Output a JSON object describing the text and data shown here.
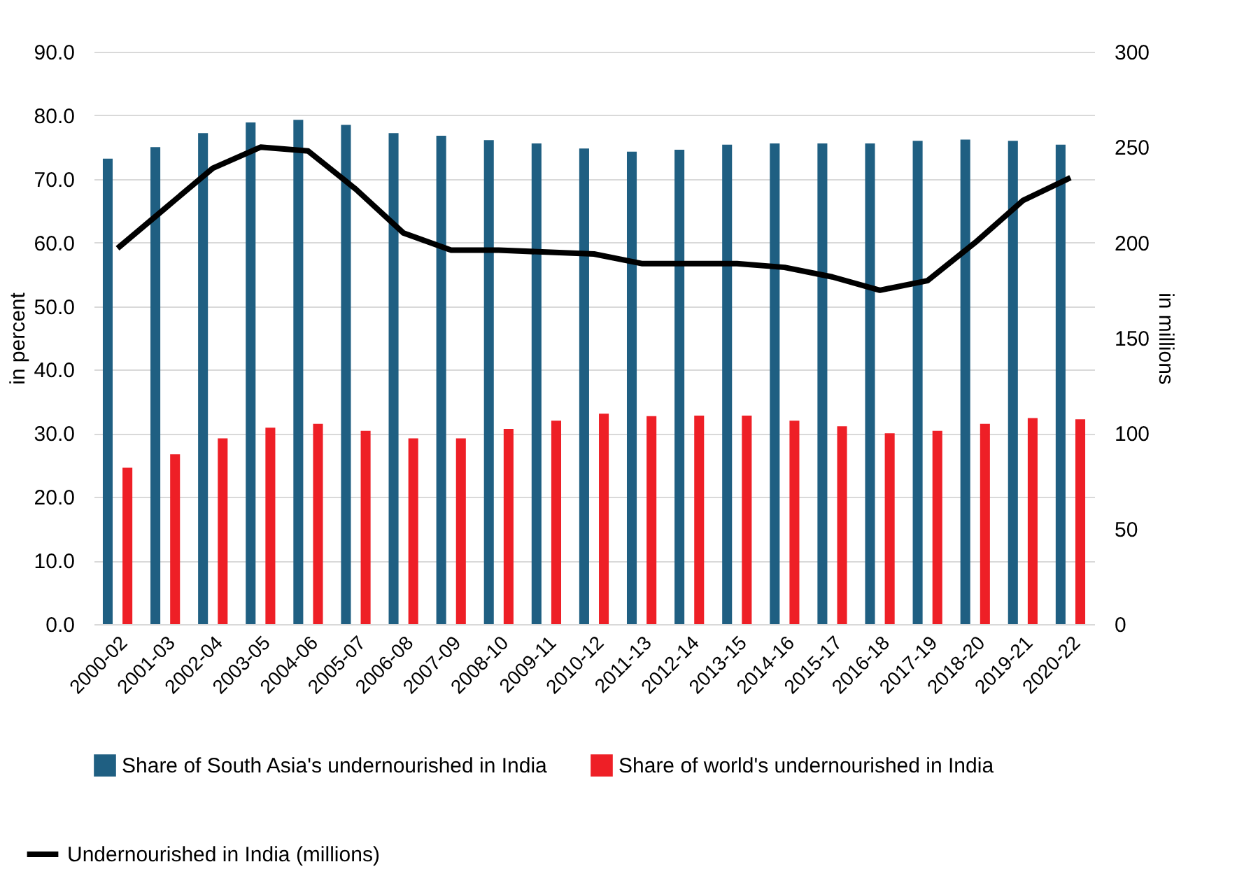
{
  "chart_data": {
    "type": "bar",
    "ylabel": "in percent",
    "y2label": "in millions",
    "categories": [
      "2000-02",
      "2001-03",
      "2002-04",
      "2003-05",
      "2004-06",
      "2005-07",
      "2006-08",
      "2007-09",
      "2008-10",
      "2009-11",
      "2010-12",
      "2011-13",
      "2012-14",
      "2013-15",
      "2014-16",
      "2015-17",
      "2016-18",
      "2017-19",
      "2018-20",
      "2019-21",
      "2020-22"
    ],
    "series": [
      {
        "name": "Share of South Asia's undernourished in India",
        "color": "#1f5f82",
        "values": [
          73.2,
          75.0,
          77.2,
          78.9,
          79.3,
          78.5,
          77.2,
          76.8,
          76.1,
          75.6,
          74.8,
          74.3,
          74.6,
          75.4,
          75.6,
          75.6,
          75.6,
          76.0,
          76.2,
          76.0,
          75.4
        ]
      },
      {
        "name": "Share of world's undernourished in India",
        "color": "#ee1f26",
        "values": [
          24.6,
          26.7,
          29.2,
          30.9,
          31.5,
          30.4,
          29.2,
          29.2,
          30.7,
          32.0,
          33.1,
          32.7,
          32.8,
          32.8,
          32.0,
          31.1,
          30.0,
          30.4,
          31.5,
          32.4,
          32.2
        ]
      },
      {
        "name": "Undernourished in India (millions)",
        "color": "#000000",
        "type": "line",
        "axis": "y2",
        "values": [
          197,
          218,
          239,
          250,
          248,
          228,
          205,
          196,
          196,
          195,
          194,
          189,
          189,
          189,
          187,
          182,
          175,
          180,
          200,
          222,
          234
        ]
      }
    ],
    "ylim": [
      0,
      90
    ],
    "yticks": [
      {
        "value": 0,
        "label": "0.0"
      },
      {
        "value": 10,
        "label": "10.0"
      },
      {
        "value": 20,
        "label": "20.0"
      },
      {
        "value": 30,
        "label": "30.0"
      },
      {
        "value": 40,
        "label": "40.0"
      },
      {
        "value": 50,
        "label": "50.0"
      },
      {
        "value": 60,
        "label": "60.0"
      },
      {
        "value": 70,
        "label": "70.0"
      },
      {
        "value": 80,
        "label": "80.0"
      },
      {
        "value": 90,
        "label": "90.0"
      }
    ],
    "y2lim": [
      0,
      300
    ],
    "y2ticks": [
      0,
      50,
      100,
      150,
      200,
      250,
      300
    ],
    "grid": "y",
    "legend": "bottom",
    "marker": "none",
    "line_style": "solid"
  }
}
